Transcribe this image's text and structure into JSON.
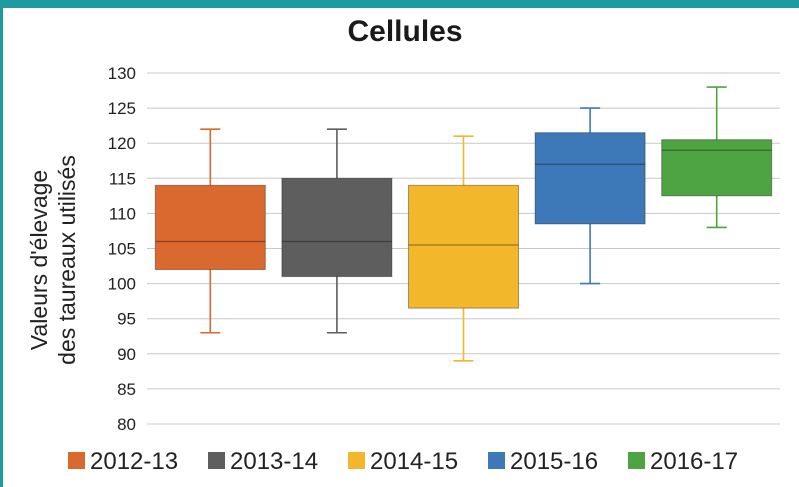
{
  "chart_data": {
    "type": "box",
    "title": "Cellules",
    "ylabel_lines": [
      "Valeurs d'élevage",
      "des taureaux utilisés"
    ],
    "xlabel": "",
    "ylim": [
      80,
      130
    ],
    "yticks": [
      80,
      85,
      90,
      95,
      100,
      105,
      110,
      115,
      120,
      125,
      130
    ],
    "grid": true,
    "legend_position": "bottom",
    "series": [
      {
        "name": "2012-13",
        "color": "#d9692e",
        "min": 93,
        "q1": 102,
        "median": 106,
        "q3": 114,
        "max": 122
      },
      {
        "name": "2013-14",
        "color": "#5e5e5e",
        "min": 93,
        "q1": 101,
        "median": 106,
        "q3": 115,
        "max": 122
      },
      {
        "name": "2014-15",
        "color": "#f2b72a",
        "min": 89,
        "q1": 96.5,
        "median": 105.5,
        "q3": 114,
        "max": 121
      },
      {
        "name": "2015-16",
        "color": "#3d79b8",
        "min": 100,
        "q1": 108.5,
        "median": 117,
        "q3": 121.5,
        "max": 125
      },
      {
        "name": "2016-17",
        "color": "#4ea343",
        "min": 108,
        "q1": 112.5,
        "median": 119,
        "q3": 120.5,
        "max": 128
      }
    ]
  }
}
